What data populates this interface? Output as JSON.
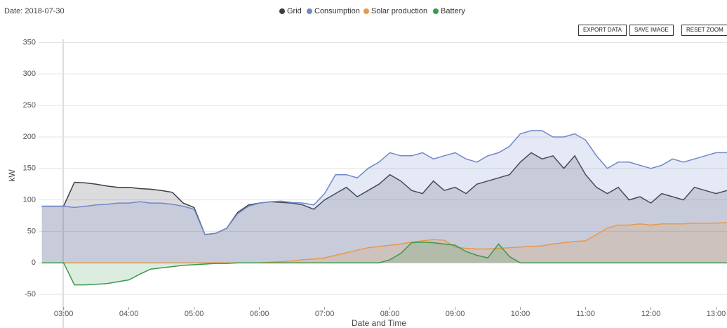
{
  "date_label": "Date: 2018-07-30",
  "buttons": [
    "EXPORT DATA",
    "SAVE IMAGE",
    "RESET ZOOM"
  ],
  "chart_data": {
    "type": "area",
    "x_label": "Date and Time",
    "y_label": "kW",
    "x": [
      "02:40",
      "02:50",
      "03:00",
      "03:10",
      "03:20",
      "03:30",
      "03:40",
      "03:50",
      "04:00",
      "04:10",
      "04:20",
      "04:30",
      "04:40",
      "04:50",
      "05:00",
      "05:10",
      "05:20",
      "05:30",
      "05:40",
      "05:50",
      "06:00",
      "06:10",
      "06:20",
      "06:30",
      "06:40",
      "06:50",
      "07:00",
      "07:10",
      "07:20",
      "07:30",
      "07:40",
      "07:50",
      "08:00",
      "08:10",
      "08:20",
      "08:30",
      "08:40",
      "08:50",
      "09:00",
      "09:10",
      "09:20",
      "09:30",
      "09:40",
      "09:50",
      "10:00",
      "10:10",
      "10:20",
      "10:30",
      "10:40",
      "10:50",
      "11:00",
      "11:10",
      "11:20",
      "11:30",
      "11:40",
      "11:50",
      "12:00",
      "12:10",
      "12:20",
      "12:30",
      "12:40",
      "12:50",
      "13:00",
      "13:10"
    ],
    "series": [
      {
        "name": "Grid",
        "color": "#3d3f46",
        "values": [
          90,
          90,
          90,
          128,
          127,
          125,
          122,
          120,
          120,
          118,
          117,
          115,
          112,
          95,
          88,
          45,
          47,
          55,
          80,
          92,
          95,
          97,
          96,
          95,
          92,
          85,
          100,
          110,
          120,
          105,
          115,
          125,
          140,
          130,
          115,
          110,
          130,
          115,
          120,
          110,
          125,
          130,
          135,
          140,
          160,
          175,
          165,
          170,
          150,
          170,
          140,
          120,
          110,
          120,
          100,
          105,
          95,
          110,
          105,
          100,
          120,
          115,
          110,
          115
        ]
      },
      {
        "name": "Consumption",
        "color": "#7187c9",
        "values": [
          90,
          90,
          90,
          88,
          90,
          92,
          93,
          95,
          95,
          97,
          95,
          95,
          93,
          90,
          85,
          45,
          47,
          55,
          78,
          90,
          95,
          97,
          98,
          96,
          95,
          92,
          110,
          140,
          140,
          135,
          150,
          160,
          175,
          170,
          170,
          175,
          165,
          170,
          175,
          165,
          160,
          170,
          175,
          185,
          205,
          210,
          210,
          200,
          200,
          205,
          195,
          170,
          150,
          160,
          160,
          155,
          150,
          155,
          165,
          160,
          165,
          170,
          175,
          175
        ]
      },
      {
        "name": "Solar production",
        "color": "#e9984a",
        "values": [
          0,
          0,
          0,
          0,
          0,
          0,
          0,
          0,
          0,
          0,
          0,
          0,
          0,
          0,
          0,
          0,
          0,
          0,
          0,
          0,
          0,
          1,
          2,
          3,
          5,
          6,
          8,
          12,
          16,
          20,
          24,
          26,
          28,
          30,
          33,
          35,
          37,
          36,
          25,
          23,
          22,
          22,
          23,
          24,
          25,
          26,
          27,
          30,
          32,
          34,
          35,
          45,
          55,
          60,
          60,
          62,
          60,
          62,
          62,
          62,
          63,
          63,
          63,
          64
        ]
      },
      {
        "name": "Battery",
        "color": "#3b9a4b",
        "values": [
          0,
          0,
          0,
          -35,
          -35,
          -34,
          -33,
          -30,
          -27,
          -18,
          -10,
          -8,
          -6,
          -4,
          -3,
          -2,
          -1,
          -1,
          0,
          0,
          0,
          0,
          0,
          0,
          0,
          0,
          0,
          0,
          0,
          0,
          0,
          0,
          5,
          15,
          32,
          33,
          32,
          30,
          28,
          18,
          12,
          8,
          30,
          10,
          0,
          0,
          0,
          0,
          0,
          0,
          0,
          0,
          0,
          0,
          0,
          0,
          0,
          0,
          0,
          0,
          0,
          0,
          0,
          0
        ]
      }
    ],
    "xlim": [
      "02:37",
      "13:10"
    ],
    "xticks": [
      "03:00",
      "04:00",
      "05:00",
      "06:00",
      "07:00",
      "08:00",
      "09:00",
      "10:00",
      "11:00",
      "12:00",
      "13:00"
    ],
    "ylim": [
      -70,
      355
    ],
    "yticks": [
      -50,
      0,
      50,
      100,
      150,
      200,
      250,
      300,
      350
    ],
    "grid": true
  }
}
